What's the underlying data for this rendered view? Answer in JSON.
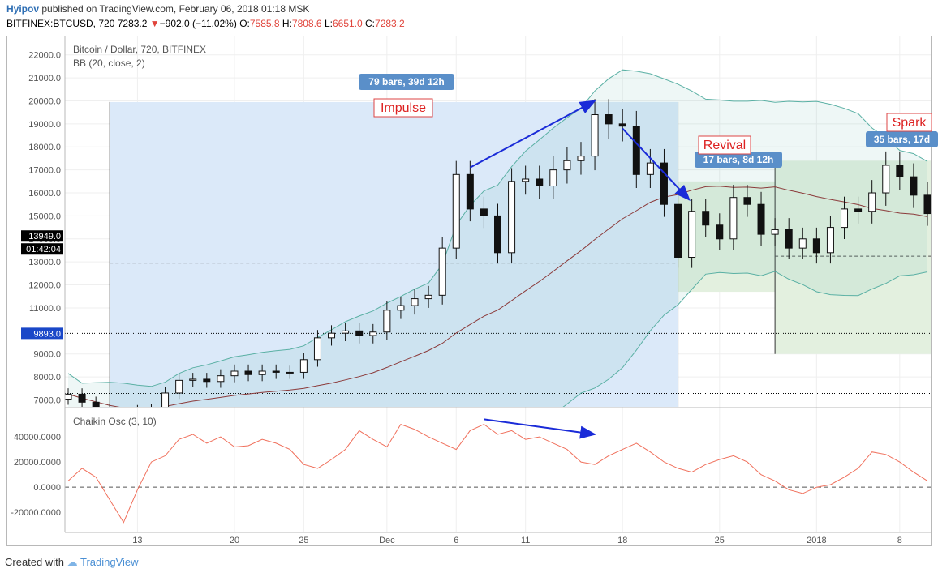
{
  "header": {
    "user": "Hyipov",
    "published_text": "published on TradingView.com, February 06, 2018 01:18 MSK",
    "symbol": "BITFINEX:BTCUSD, 720",
    "last": "7283.2",
    "change": "−902.0 (−11.02%)",
    "o_label": "O:",
    "o_value": "7585.8",
    "h_label": "H:",
    "h_value": "7808.6",
    "l_label": "L:",
    "l_value": "6651.0",
    "c_label": "C:",
    "c_value": "7283.2"
  },
  "footer": {
    "created_with": "Created with",
    "brand": "TradingView"
  },
  "colors": {
    "up": "#ffffff",
    "down": "#111111",
    "bb_line": "#5ab0a4",
    "bb_basis": "#8b3a3a",
    "impulse_box": "#dbe9f9",
    "green_box": "#e3f0df",
    "arrow": "#1a2bd8",
    "osc": "#f0705c",
    "label_box": "#5a8fc9"
  },
  "chart_data": [
    {
      "type": "candlestick",
      "title": "Bitcoin / Dollar, 720, BITFINEX",
      "indicator": "BB (20, close, 2)",
      "ylim": [
        6700,
        22800
      ],
      "y_ticks": [
        "22000.0",
        "21000.0",
        "20000.0",
        "19000.0",
        "18000.0",
        "17000.0",
        "16000.0",
        "15000.0",
        "14000.0",
        "13000.0",
        "12000.0",
        "11000.0",
        "10000.0",
        "9000.0",
        "8000.0",
        "7000.0"
      ],
      "x_ticks": [
        "13",
        "20",
        "25",
        "Dec",
        "6",
        "11",
        "18",
        "25",
        "2018",
        "8"
      ],
      "price_tags": [
        "13949.0",
        "01:42:04",
        "9893.0"
      ],
      "annotations": [
        "79 bars, 39d 12h",
        "Impulse",
        "Revival",
        "17 bars, 8d 12h",
        "Spark",
        "35 bars, 17d"
      ],
      "x": [
        "Nov 8",
        "Nov 9",
        "Nov 10",
        "Nov 11",
        "Nov 12",
        "Nov 13",
        "Nov 14",
        "Nov 15",
        "Nov 16",
        "Nov 17",
        "Nov 18",
        "Nov 19",
        "Nov 20",
        "Nov 21",
        "Nov 22",
        "Nov 23",
        "Nov 24",
        "Nov 25",
        "Nov 26",
        "Nov 27",
        "Nov 28",
        "Nov 29",
        "Nov 30",
        "Dec 1",
        "Dec 2",
        "Dec 3",
        "Dec 4",
        "Dec 5",
        "Dec 6",
        "Dec 7",
        "Dec 8",
        "Dec 9",
        "Dec 10",
        "Dec 11",
        "Dec 12",
        "Dec 13",
        "Dec 14",
        "Dec 15",
        "Dec 16",
        "Dec 17",
        "Dec 18",
        "Dec 19",
        "Dec 20",
        "Dec 21",
        "Dec 22",
        "Dec 23",
        "Dec 24",
        "Dec 25",
        "Dec 26",
        "Dec 27",
        "Dec 28",
        "Dec 29",
        "Dec 30",
        "Dec 31",
        "Jan 1",
        "Jan 2",
        "Jan 3",
        "Jan 4",
        "Jan 5",
        "Jan 6",
        "Jan 7",
        "Jan 8",
        "Jan 9"
      ],
      "close": [
        7250,
        6900,
        6600,
        6300,
        6200,
        6550,
        6600,
        7300,
        7850,
        7900,
        7800,
        8050,
        8250,
        8100,
        8250,
        8200,
        8200,
        8750,
        9700,
        9900,
        10000,
        9800,
        9950,
        10900,
        11100,
        11400,
        11550,
        13600,
        16800,
        15300,
        15000,
        13400,
        16500,
        16600,
        16300,
        17000,
        17400,
        17600,
        19400,
        19000,
        18900,
        16800,
        17300,
        15500,
        13200,
        15200,
        14600,
        14000,
        15800,
        15500,
        14200,
        14400,
        13600,
        14000,
        13400,
        14500,
        15300,
        15200,
        16000,
        17200,
        16700,
        15900,
        15100
      ]
    },
    {
      "type": "line",
      "title": "Chaikin Osc (3, 10)",
      "ylim": [
        -36000,
        62000
      ],
      "y_ticks": [
        "40000.0000",
        "20000.0000",
        "0.0000",
        "-20000.0000"
      ],
      "series": [
        {
          "values": [
            5000,
            15000,
            8000,
            -10000,
            -28000,
            -2000,
            20000,
            25000,
            38000,
            42000,
            35000,
            40000,
            32000,
            33000,
            38000,
            35000,
            30000,
            18000,
            15000,
            22000,
            30000,
            45000,
            38000,
            32000,
            50000,
            46000,
            40000,
            35000,
            30000,
            45000,
            50000,
            42000,
            45000,
            38000,
            40000,
            35000,
            30000,
            20000,
            18000,
            25000,
            30000,
            35000,
            28000,
            20000,
            15000,
            12000,
            18000,
            22000,
            25000,
            20000,
            10000,
            5000,
            -2000,
            -5000,
            0,
            2000,
            8000,
            15000,
            28000,
            26000,
            20000,
            12000,
            5000
          ]
        }
      ]
    }
  ]
}
